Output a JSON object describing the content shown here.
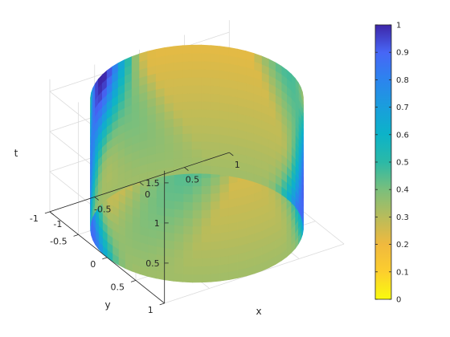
{
  "chart_data": {
    "type": "surface3d",
    "title": "",
    "xlabel": "x",
    "ylabel": "y",
    "zlabel": "t",
    "xlim": [
      -1,
      1
    ],
    "ylim": [
      -1,
      1
    ],
    "zlim": [
      0,
      1.65
    ],
    "x_ticks": [
      "-1",
      "-0.5",
      "0",
      "0.5",
      "1"
    ],
    "y_ticks": [
      "1",
      "0.5",
      "0",
      "-0.5",
      "-1"
    ],
    "z_ticks": [
      "0.5",
      "1",
      "1.5"
    ],
    "grid": true,
    "surface": "cylinder of radius 1, height 0 to 1.6, colored by a wave value",
    "colormap": "parula (reversed: yellow at 0, dark blue at 1)",
    "colorbar": {
      "limits": [
        0,
        1
      ],
      "ticks": [
        "0",
        "0.1",
        "0.2",
        "0.3",
        "0.4",
        "0.5",
        "0.6",
        "0.7",
        "0.8",
        "0.9",
        "1"
      ],
      "placement": "right"
    },
    "colors": {
      "low": "#f9fb0e",
      "mid": "#2bb9a7",
      "high": "#3e26a8"
    }
  }
}
